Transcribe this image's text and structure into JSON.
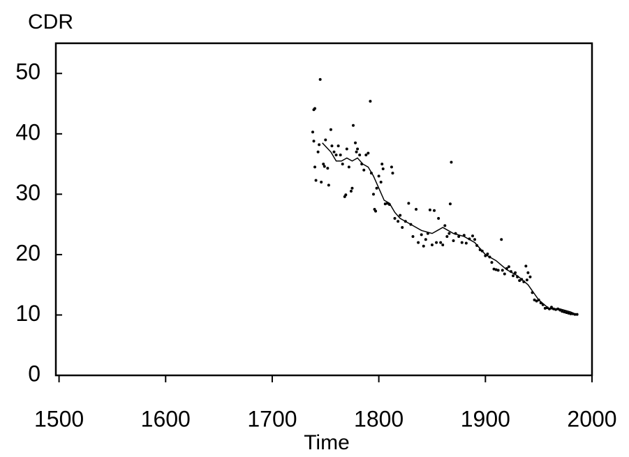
{
  "chart_data": {
    "type": "scatter",
    "y_label": "CDR",
    "x_label": "Time",
    "xlim": [
      1497,
      2000
    ],
    "ylim": [
      0,
      55
    ],
    "xticks": [
      1500,
      1600,
      1700,
      1800,
      1900,
      2000
    ],
    "yticks": [
      0,
      10,
      20,
      30,
      40,
      50
    ],
    "color": "#000000",
    "points": {
      "x": [
        1739,
        1740,
        1738,
        1739,
        1740,
        1741,
        1743,
        1745,
        1744,
        1746,
        1748,
        1749,
        1750,
        1752,
        1753,
        1755,
        1756,
        1758,
        1760,
        1762,
        1764,
        1766,
        1768,
        1769,
        1770,
        1772,
        1774,
        1775,
        1776,
        1778,
        1779,
        1780,
        1782,
        1784,
        1786,
        1788,
        1790,
        1792,
        1793,
        1795,
        1796,
        1797,
        1798,
        1800,
        1802,
        1803,
        1804,
        1806,
        1808,
        1810,
        1812,
        1813,
        1815,
        1818,
        1820,
        1822,
        1825,
        1828,
        1830,
        1832,
        1835,
        1837,
        1840,
        1842,
        1844,
        1846,
        1848,
        1850,
        1852,
        1854,
        1856,
        1858,
        1860,
        1862,
        1864,
        1866,
        1868,
        1867,
        1870,
        1872,
        1875,
        1878,
        1880,
        1882,
        1885,
        1888,
        1890,
        1892,
        1895,
        1897,
        1900,
        1902,
        1904,
        1906,
        1908,
        1910,
        1912,
        1915,
        1916,
        1918,
        1920,
        1922,
        1924,
        1926,
        1928,
        1930,
        1932,
        1934,
        1936,
        1938,
        1939,
        1940,
        1942,
        1944,
        1946,
        1948,
        1950,
        1952,
        1954,
        1956,
        1958,
        1960,
        1962,
        1964,
        1966,
        1968,
        1970,
        1972,
        1974,
        1976,
        1978,
        1980,
        1982,
        1984,
        1986
      ],
      "y": [
        44,
        44.2,
        40.3,
        38.8,
        34.5,
        32.3,
        37,
        49,
        38.2,
        32,
        35,
        34.6,
        39,
        34.3,
        31.5,
        40.7,
        38,
        37,
        36.5,
        38,
        36.5,
        35,
        29.6,
        29.9,
        37.5,
        34.5,
        30.5,
        31,
        41.4,
        38.5,
        37,
        37.5,
        36.5,
        35,
        34,
        36.5,
        36.8,
        45.4,
        33.5,
        30,
        27.5,
        27.2,
        31,
        33,
        32,
        35,
        34.2,
        28.4,
        28.5,
        28.3,
        34.5,
        33.5,
        26,
        25.5,
        26.5,
        24.5,
        25.5,
        28.5,
        25,
        23,
        27.5,
        22,
        23.3,
        21.4,
        22.5,
        23.5,
        27.4,
        21.6,
        27.3,
        22,
        26,
        22,
        21.6,
        24.8,
        23,
        23.5,
        35.3,
        28.4,
        22.3,
        23.5,
        23,
        22,
        23.2,
        21.9,
        22.6,
        23.1,
        22.5,
        21.5,
        20.8,
        20.6,
        19.8,
        20.1,
        19.6,
        18.7,
        17.6,
        17.5,
        17.4,
        22.5,
        17.4,
        16.8,
        17.7,
        18,
        17.2,
        16.5,
        17,
        16.3,
        15.7,
        15.9,
        15.5,
        18.1,
        15.8,
        17,
        16.3,
        13.7,
        12.5,
        12.3,
        12.5,
        12,
        11.7,
        11.1,
        11.2,
        11,
        11.3,
        11,
        10.9,
        11,
        10.8,
        10.6,
        10.5,
        10.4,
        10.3,
        10.2,
        10.2,
        10.1,
        10.1
      ]
    },
    "line": {
      "x": [
        1747,
        1755,
        1760,
        1765,
        1770,
        1775,
        1780,
        1785,
        1790,
        1795,
        1800,
        1805,
        1810,
        1815,
        1820,
        1830,
        1840,
        1850,
        1855,
        1860,
        1870,
        1880,
        1890,
        1900,
        1910,
        1920,
        1930,
        1940,
        1950,
        1960,
        1970,
        1980,
        1986
      ],
      "y": [
        38.5,
        37,
        35.5,
        35.5,
        36,
        35.5,
        36,
        35,
        34.5,
        33,
        31,
        29,
        28.5,
        27,
        26,
        25,
        24,
        23.5,
        24,
        24.5,
        23.5,
        23,
        22,
        20,
        19,
        17.5,
        16.5,
        15,
        12.5,
        11,
        11,
        10.5,
        10
      ]
    }
  }
}
